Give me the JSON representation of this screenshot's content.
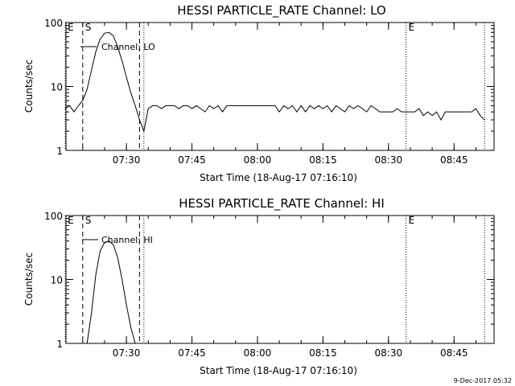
{
  "chart_data": [
    {
      "type": "line",
      "title": "HESSI PARTICLE_RATE Channel: LO",
      "xlabel": "Start Time (18-Aug-17 07:16:10)",
      "ylabel": "Counts/sec",
      "yscale": "log",
      "ylim": [
        1,
        100
      ],
      "xlim_minutes_after_start": [
        0,
        98
      ],
      "y_tick_labels": [
        "1",
        "10",
        "100"
      ],
      "x_tick_labels": [
        "07:30",
        "07:45",
        "08:00",
        "08:15",
        "08:30",
        "08:45"
      ],
      "legend": "Channel: LO",
      "markers": [
        {
          "label": "E",
          "style": "dotted",
          "time": "07:16"
        },
        {
          "label": "S",
          "style": "dashed",
          "time": "07:20"
        },
        {
          "label": "",
          "style": "dashed",
          "time": "07:33"
        },
        {
          "label": "",
          "style": "dotted",
          "time": "07:34"
        },
        {
          "label": "E",
          "style": "dotted",
          "time": "08:34"
        },
        {
          "label": "",
          "style": "dotted",
          "time": "08:52"
        }
      ],
      "series": [
        {
          "name": "Channel: LO",
          "x": [
            "07:16",
            "07:17",
            "07:18",
            "07:19",
            "07:20",
            "07:21",
            "07:22",
            "07:23",
            "07:24",
            "07:25",
            "07:26",
            "07:27",
            "07:28",
            "07:29",
            "07:30",
            "07:31",
            "07:32",
            "07:33",
            "07:34",
            "07:35",
            "07:36",
            "07:37",
            "07:38",
            "07:39",
            "07:40",
            "07:41",
            "07:42",
            "07:43",
            "07:44",
            "07:45",
            "07:46",
            "07:47",
            "07:48",
            "07:49",
            "07:50",
            "07:51",
            "07:52",
            "07:53",
            "07:54",
            "07:55",
            "07:56",
            "07:57",
            "07:58",
            "07:59",
            "08:00",
            "08:01",
            "08:02",
            "08:03",
            "08:04",
            "08:05",
            "08:06",
            "08:07",
            "08:08",
            "08:09",
            "08:10",
            "08:11",
            "08:12",
            "08:13",
            "08:14",
            "08:15",
            "08:16",
            "08:17",
            "08:18",
            "08:19",
            "08:20",
            "08:21",
            "08:22",
            "08:23",
            "08:24",
            "08:25",
            "08:26",
            "08:27",
            "08:28",
            "08:29",
            "08:30",
            "08:31",
            "08:32",
            "08:33",
            "08:34",
            "08:35",
            "08:36",
            "08:37",
            "08:38",
            "08:39",
            "08:40",
            "08:41",
            "08:42",
            "08:43",
            "08:44",
            "08:45",
            "08:46",
            "08:47",
            "08:48",
            "08:49",
            "08:50",
            "08:51",
            "08:52"
          ],
          "values": [
            4.5,
            5,
            4,
            5,
            6,
            9,
            18,
            35,
            55,
            68,
            70,
            62,
            42,
            25,
            14,
            8,
            5,
            3,
            2,
            4.5,
            5,
            5,
            4.5,
            5,
            5,
            5,
            4.5,
            5,
            5,
            4.5,
            5,
            4.5,
            4,
            5,
            4.5,
            5,
            4,
            5,
            5,
            5,
            5,
            5,
            5,
            5,
            5,
            5,
            5,
            5,
            5,
            4,
            5,
            4.5,
            5,
            4,
            5,
            4,
            5,
            4.5,
            5,
            4.5,
            5,
            4,
            5,
            4.5,
            4,
            5,
            4.5,
            5,
            4.5,
            4,
            5,
            4.5,
            4,
            4,
            4,
            4,
            4.5,
            4,
            4,
            4,
            4,
            4.5,
            3.5,
            4,
            3.5,
            4,
            3,
            4,
            4,
            4,
            4,
            4,
            4,
            4,
            4.5,
            3.5,
            3
          ]
        }
      ]
    },
    {
      "type": "line",
      "title": "HESSI PARTICLE_RATE Channel: HI",
      "xlabel": "Start Time (18-Aug-17 07:16:10)",
      "ylabel": "Counts/sec",
      "yscale": "log",
      "ylim": [
        1,
        100
      ],
      "xlim_minutes_after_start": [
        0,
        98
      ],
      "y_tick_labels": [
        "1",
        "10",
        "100"
      ],
      "x_tick_labels": [
        "07:30",
        "07:45",
        "08:00",
        "08:15",
        "08:30",
        "08:45"
      ],
      "legend": "Channel: HI",
      "markers": [
        {
          "label": "E",
          "style": "dotted",
          "time": "07:16"
        },
        {
          "label": "S",
          "style": "dashed",
          "time": "07:20"
        },
        {
          "label": "",
          "style": "dashed",
          "time": "07:33"
        },
        {
          "label": "",
          "style": "dotted",
          "time": "07:34"
        },
        {
          "label": "E",
          "style": "dotted",
          "time": "08:34"
        },
        {
          "label": "",
          "style": "dotted",
          "time": "08:52"
        }
      ],
      "series": [
        {
          "name": "Channel: HI",
          "x": [
            "07:21",
            "07:22",
            "07:23",
            "07:24",
            "07:25",
            "07:26",
            "07:27",
            "07:28",
            "07:29",
            "07:30",
            "07:31",
            "07:32"
          ],
          "values": [
            1,
            3,
            12,
            28,
            38,
            40,
            35,
            22,
            10,
            4,
            1.8,
            1
          ]
        }
      ]
    }
  ],
  "footer": {
    "timestamp": "9-Dec-2017 05:32"
  }
}
